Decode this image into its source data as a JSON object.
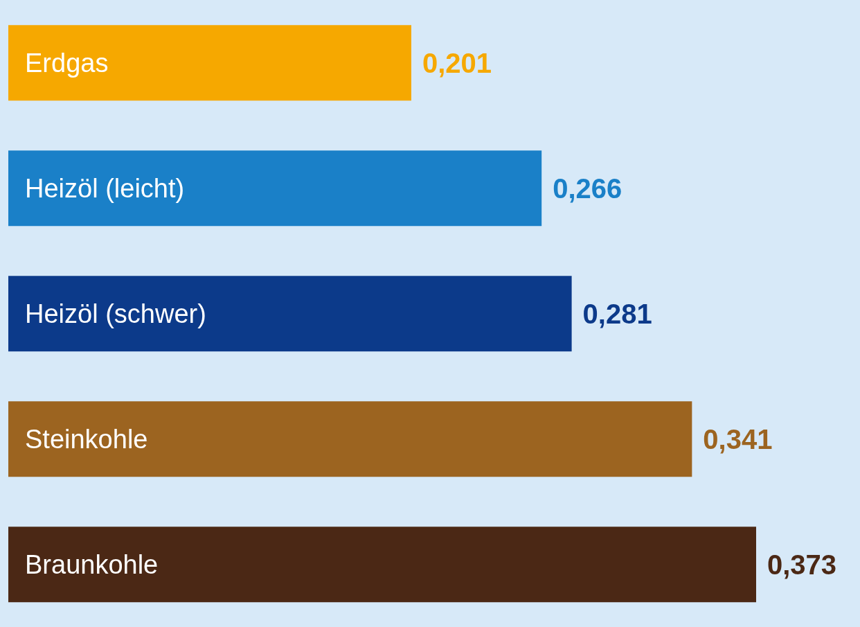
{
  "chart_data": {
    "type": "bar",
    "orientation": "horizontal",
    "categories": [
      "Erdgas",
      "Heizöl (leicht)",
      "Heizöl (schwer)",
      "Steinkohle",
      "Braunkohle"
    ],
    "values": [
      0.201,
      0.266,
      0.281,
      0.341,
      0.373
    ],
    "colors": [
      "#f6a800",
      "#1a80c8",
      "#0c3a8a",
      "#9c6420",
      "#4b2815"
    ],
    "value_labels": [
      "0,201",
      "0,266",
      "0,281",
      "0,341",
      "0,373"
    ],
    "grid": false,
    "legend": false
  }
}
